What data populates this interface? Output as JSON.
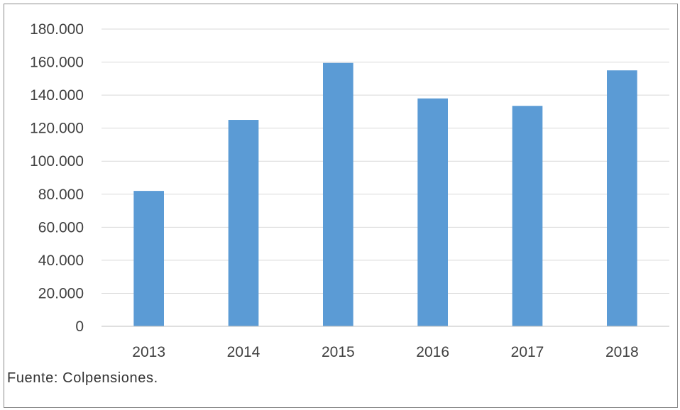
{
  "chart_data": {
    "type": "bar",
    "title": "",
    "xlabel": "",
    "ylabel": "",
    "categories": [
      "2013",
      "2014",
      "2015",
      "2016",
      "2017",
      "2018"
    ],
    "values": [
      82000,
      125000,
      159500,
      138000,
      133500,
      155000
    ],
    "ylim": [
      0,
      180000
    ],
    "y_ticks": [
      0,
      20000,
      40000,
      60000,
      80000,
      100000,
      120000,
      140000,
      160000,
      180000
    ],
    "y_tick_labels": [
      "0",
      "20.000",
      "40.000",
      "60.000",
      "80.000",
      "100.000",
      "120.000",
      "140.000",
      "160.000",
      "180.000"
    ],
    "grid": "horizontal",
    "legend": "none",
    "bar_color": "#5B9BD5"
  },
  "source_note": "Fuente: Colpensiones."
}
